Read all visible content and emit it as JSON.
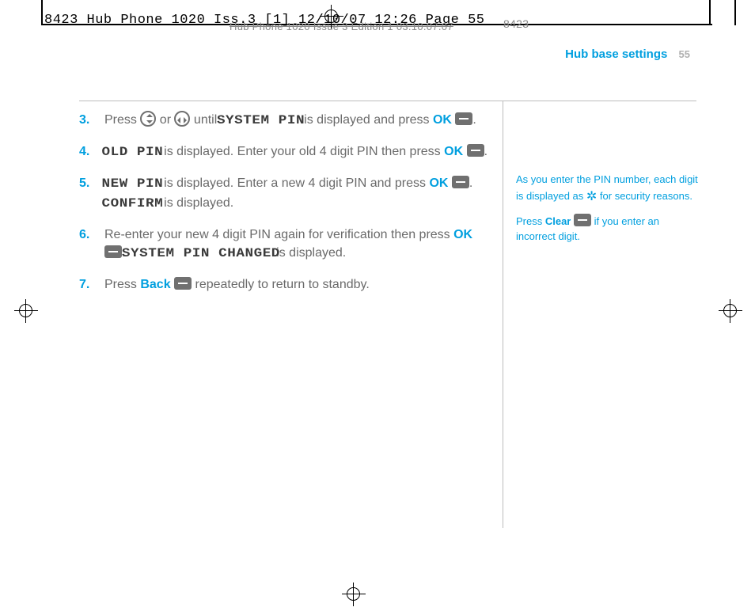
{
  "slug_text": "8423 Hub Phone 1020 Iss.3 [1]  12/10/07  12:26  Page 55",
  "footer_slug_text": "Hub Phone 1020   Issue 3   Edition 1   03.10.07.07",
  "right_num": "8423",
  "running_head": {
    "title": "Hub base settings",
    "page_number": "55"
  },
  "steps": [
    {
      "num": "3.",
      "parts": [
        {
          "t": "text",
          "v": "Press "
        },
        {
          "t": "nav",
          "v": "updown"
        },
        {
          "t": "text",
          "v": " or "
        },
        {
          "t": "nav",
          "v": "leftright"
        },
        {
          "t": "text",
          "v": " until "
        },
        {
          "t": "lcd",
          "v": "SYSTEM PIN"
        },
        {
          "t": "text",
          "v": " is displayed and press "
        },
        {
          "t": "ok",
          "v": "OK"
        },
        {
          "t": "text",
          "v": " "
        },
        {
          "t": "btn",
          "v": "dash"
        },
        {
          "t": "text",
          "v": "."
        }
      ]
    },
    {
      "num": "4.",
      "parts": [
        {
          "t": "lcd",
          "v": "OLD PIN"
        },
        {
          "t": "text",
          "v": " is displayed. Enter your old 4 digit PIN then press "
        },
        {
          "t": "ok",
          "v": "OK"
        },
        {
          "t": "text",
          "v": " "
        },
        {
          "t": "btn",
          "v": "dash"
        },
        {
          "t": "text",
          "v": "."
        }
      ]
    },
    {
      "num": "5.",
      "parts": [
        {
          "t": "lcd",
          "v": "NEW PIN"
        },
        {
          "t": "text",
          "v": " is displayed. Enter a new 4 digit PIN and press "
        },
        {
          "t": "ok",
          "v": "OK"
        },
        {
          "t": "text",
          "v": " "
        },
        {
          "t": "btn",
          "v": "dash"
        },
        {
          "t": "text",
          "v": ". "
        },
        {
          "t": "lcd",
          "v": "CONFIRM"
        },
        {
          "t": "text",
          "v": " is displayed."
        }
      ]
    },
    {
      "num": "6.",
      "parts": [
        {
          "t": "text",
          "v": "Re-enter your new 4 digit PIN again for verification then press "
        },
        {
          "t": "ok",
          "v": "OK"
        },
        {
          "t": "text",
          "v": " "
        },
        {
          "t": "btn",
          "v": "dash"
        },
        {
          "t": "text",
          "v": ". "
        },
        {
          "t": "lcd",
          "v": "SYSTEM PIN CHANGED"
        },
        {
          "t": "text",
          "v": " is displayed."
        }
      ]
    },
    {
      "num": "7.",
      "parts": [
        {
          "t": "text",
          "v": "Press "
        },
        {
          "t": "blue",
          "v": "Back"
        },
        {
          "t": "text",
          "v": " "
        },
        {
          "t": "btn",
          "v": "dash"
        },
        {
          "t": "text",
          "v": " repeatedly to return to standby."
        }
      ]
    }
  ],
  "sidebar": {
    "p1_pre": "As you enter the PIN number, each digit is displayed as ",
    "p1_post": " for security reasons.",
    "p2_pre": "Press ",
    "p2_bold": "Clear",
    "p2_post": " if you enter an incorrect digit."
  }
}
